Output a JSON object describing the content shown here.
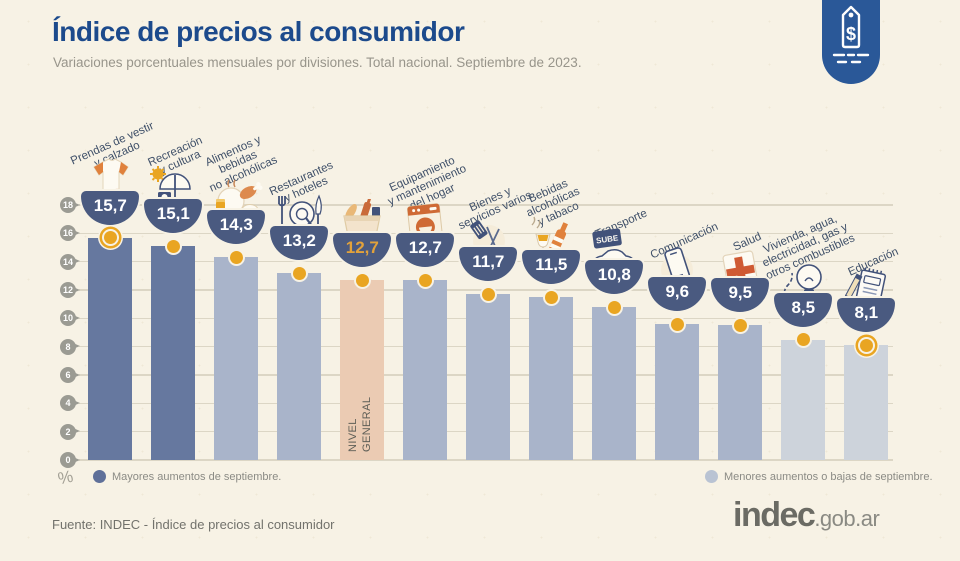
{
  "header": {
    "title": "Índice de precios al consumidor",
    "subtitle": "Variaciones porcentuales mensuales por divisiones. Total nacional. Septiembre de 2023.",
    "badge_icon": "price-tag-icon"
  },
  "colors": {
    "background": "#f7f2e5",
    "title_blue": "#1c4a8c",
    "badge_blue": "#2a5898",
    "bowl_navy": "#4a5a80",
    "bar_dark": "#66789f",
    "bar_medium": "#a9b4ca",
    "bar_light": "#cdd3db",
    "bar_highlight": "#ebcbb3",
    "dot_gold": "#e9a522",
    "grid_line": "#dcd6c5",
    "tick_gray": "#9b9b93",
    "label_slate": "#3e4f68",
    "value_gold": "#e2a23b",
    "legend_dark": "#5f7099",
    "legend_light": "#b9c3d3"
  },
  "chart_data": {
    "type": "bar",
    "title": "Índice de precios al consumidor",
    "subtitle": "Variaciones porcentuales mensuales por divisiones. Total nacional. Septiembre de 2023.",
    "xlabel": "",
    "ylabel": "%",
    "ylim": [
      0,
      18
    ],
    "yticks": [
      0,
      2,
      4,
      6,
      8,
      10,
      12,
      14,
      16,
      18
    ],
    "grid": true,
    "legend_position": "bottom",
    "categories": [
      "Prendas de vestir y calzado",
      "Recreación y cultura",
      "Alimentos y bebidas no alcohólicas",
      "Restaurantes y hoteles",
      "NIVEL GENERAL",
      "Equipamiento y mantenimiento del hogar",
      "Bienes y servicios varios",
      "Bebidas alcohólicas y tabaco",
      "Transporte",
      "Comunicación",
      "Salud",
      "Vivienda, agua, electricidad, gas y otros combustibles",
      "Educación"
    ],
    "values": [
      15.7,
      15.1,
      14.3,
      13.2,
      12.7,
      12.7,
      11.7,
      11.5,
      10.8,
      9.6,
      9.5,
      8.5,
      8.1
    ],
    "bars": [
      {
        "id": "prendas",
        "label_lines": [
          "Prendas de vestir",
          "y calzado"
        ],
        "value": 15.7,
        "display_value": "15,7",
        "icon": "clothing-icon",
        "group": "dark",
        "ring": true,
        "highlight": false
      },
      {
        "id": "recreacion",
        "label_lines": [
          "Recreación",
          "y cultura"
        ],
        "value": 15.1,
        "display_value": "15,1",
        "icon": "recreation-icon",
        "group": "dark",
        "ring": false,
        "highlight": false
      },
      {
        "id": "alimentos",
        "label_lines": [
          "Alimentos y",
          "bebidas",
          "no alcohólicas"
        ],
        "value": 14.3,
        "display_value": "14,3",
        "icon": "food-icon",
        "group": "medium",
        "ring": false,
        "highlight": false
      },
      {
        "id": "restaurantes",
        "label_lines": [
          "Restaurantes",
          "y hoteles"
        ],
        "value": 13.2,
        "display_value": "13,2",
        "icon": "restaurant-icon",
        "group": "medium",
        "ring": false,
        "highlight": false
      },
      {
        "id": "nivel-general",
        "label_lines": [],
        "in_bar_label": "NIVEL\nGENERAL",
        "value": 12.7,
        "display_value": "12,7",
        "icon": "shopping-bag-icon",
        "group": "highlight",
        "ring": false,
        "highlight": true
      },
      {
        "id": "equipamiento",
        "label_lines": [
          "Equipamiento",
          "y mantenimiento",
          "del hogar"
        ],
        "value": 12.7,
        "display_value": "12,7",
        "icon": "washing-machine-icon",
        "group": "medium",
        "ring": false,
        "highlight": false
      },
      {
        "id": "bienes",
        "label_lines": [
          "Bienes y",
          "servicios varios"
        ],
        "value": 11.7,
        "display_value": "11,7",
        "icon": "personal-care-icon",
        "group": "medium",
        "ring": false,
        "highlight": false
      },
      {
        "id": "bebidas",
        "label_lines": [
          "Bebidas",
          "alcohólicas",
          "y tabaco"
        ],
        "value": 11.5,
        "display_value": "11,5",
        "icon": "alcohol-icon",
        "group": "medium",
        "ring": false,
        "highlight": false
      },
      {
        "id": "transporte",
        "label_lines": [
          "Transporte"
        ],
        "value": 10.8,
        "display_value": "10,8",
        "icon": "transport-icon",
        "group": "medium",
        "ring": false,
        "highlight": false
      },
      {
        "id": "comunicacion",
        "label_lines": [
          "Comunicación"
        ],
        "value": 9.6,
        "display_value": "9,6",
        "icon": "phone-icon",
        "group": "medium",
        "ring": false,
        "highlight": false
      },
      {
        "id": "salud",
        "label_lines": [
          "Salud"
        ],
        "value": 9.5,
        "display_value": "9,5",
        "icon": "health-cross-icon",
        "group": "medium",
        "ring": false,
        "highlight": false
      },
      {
        "id": "vivienda",
        "label_lines": [
          "Vivienda, agua,",
          "electricidad, gas y",
          "otros combustibles"
        ],
        "value": 8.5,
        "display_value": "8,5",
        "icon": "lightbulb-icon",
        "group": "light",
        "ring": false,
        "highlight": false
      },
      {
        "id": "educacion",
        "label_lines": [
          "Educación"
        ],
        "value": 8.1,
        "display_value": "8,1",
        "icon": "notebook-icon",
        "group": "light",
        "ring": true,
        "highlight": false
      }
    ],
    "legend": [
      {
        "label": "Mayores aumentos de septiembre.",
        "color": "#5f7099"
      },
      {
        "label": "Menores aumentos o bajas de septiembre.",
        "color": "#b9c3d3"
      }
    ]
  },
  "footer": {
    "source": "Fuente: INDEC - Índice de precios al consumidor",
    "logo_text": "indec",
    "logo_suffix": ".gob.ar"
  }
}
